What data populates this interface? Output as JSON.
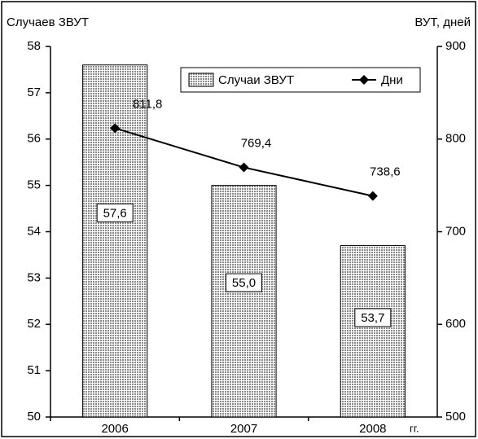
{
  "chart_data": {
    "type": "bar",
    "y_label": "Случаев ЗВУТ",
    "y2_label": "ВУТ, дней",
    "x_unit": "гг.",
    "categories": [
      "2006",
      "2007",
      "2008"
    ],
    "series": [
      {
        "name": "Случаи ЗВУТ",
        "type": "bar",
        "color": "#8a8a8a",
        "values": [
          57.6,
          55.0,
          53.7
        ],
        "value_labels": [
          "57,6",
          "55,0",
          "53,7"
        ]
      },
      {
        "name": "Дни",
        "type": "line",
        "axis": "y2",
        "color": "#000000",
        "values": [
          811.8,
          769.4,
          738.6
        ],
        "value_labels": [
          "811,8",
          "769,4",
          "738,6"
        ]
      }
    ],
    "ylim": [
      50,
      58
    ],
    "yticks": [
      50,
      51,
      52,
      53,
      54,
      55,
      56,
      57,
      58
    ],
    "y2lim": [
      500,
      900
    ],
    "y2ticks": [
      500,
      600,
      700,
      800,
      900
    ]
  }
}
